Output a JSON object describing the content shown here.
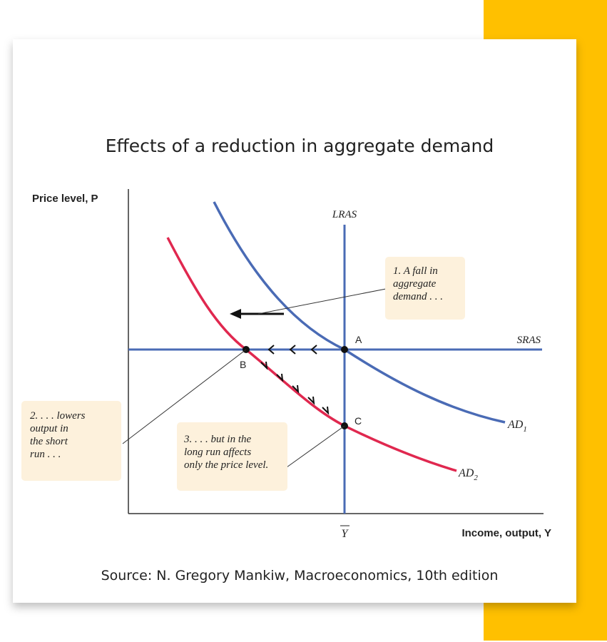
{
  "title": "Effects of a reduction in aggregate demand",
  "axes": {
    "y_label": "Price level, P",
    "x_label": "Income, output, Y",
    "x_mark": "Y"
  },
  "curves": {
    "lras": "LRAS",
    "sras": "SRAS",
    "ad1": {
      "text": "AD",
      "sub": "1"
    },
    "ad2": {
      "text": "AD",
      "sub": "2"
    }
  },
  "points": {
    "a": "A",
    "b": "B",
    "c": "C"
  },
  "annotations": [
    {
      "lines": [
        "1. A fall in",
        "aggregate",
        "demand . . ."
      ]
    },
    {
      "lines": [
        "2. . . . lowers",
        "output in",
        "the short",
        "run . . ."
      ]
    },
    {
      "lines": [
        "3. . . . but in the",
        "long run affects",
        "only the price level."
      ]
    }
  ],
  "source": "Source: N. Gregory Mankiw, Macroeconomics, 10th edition"
}
